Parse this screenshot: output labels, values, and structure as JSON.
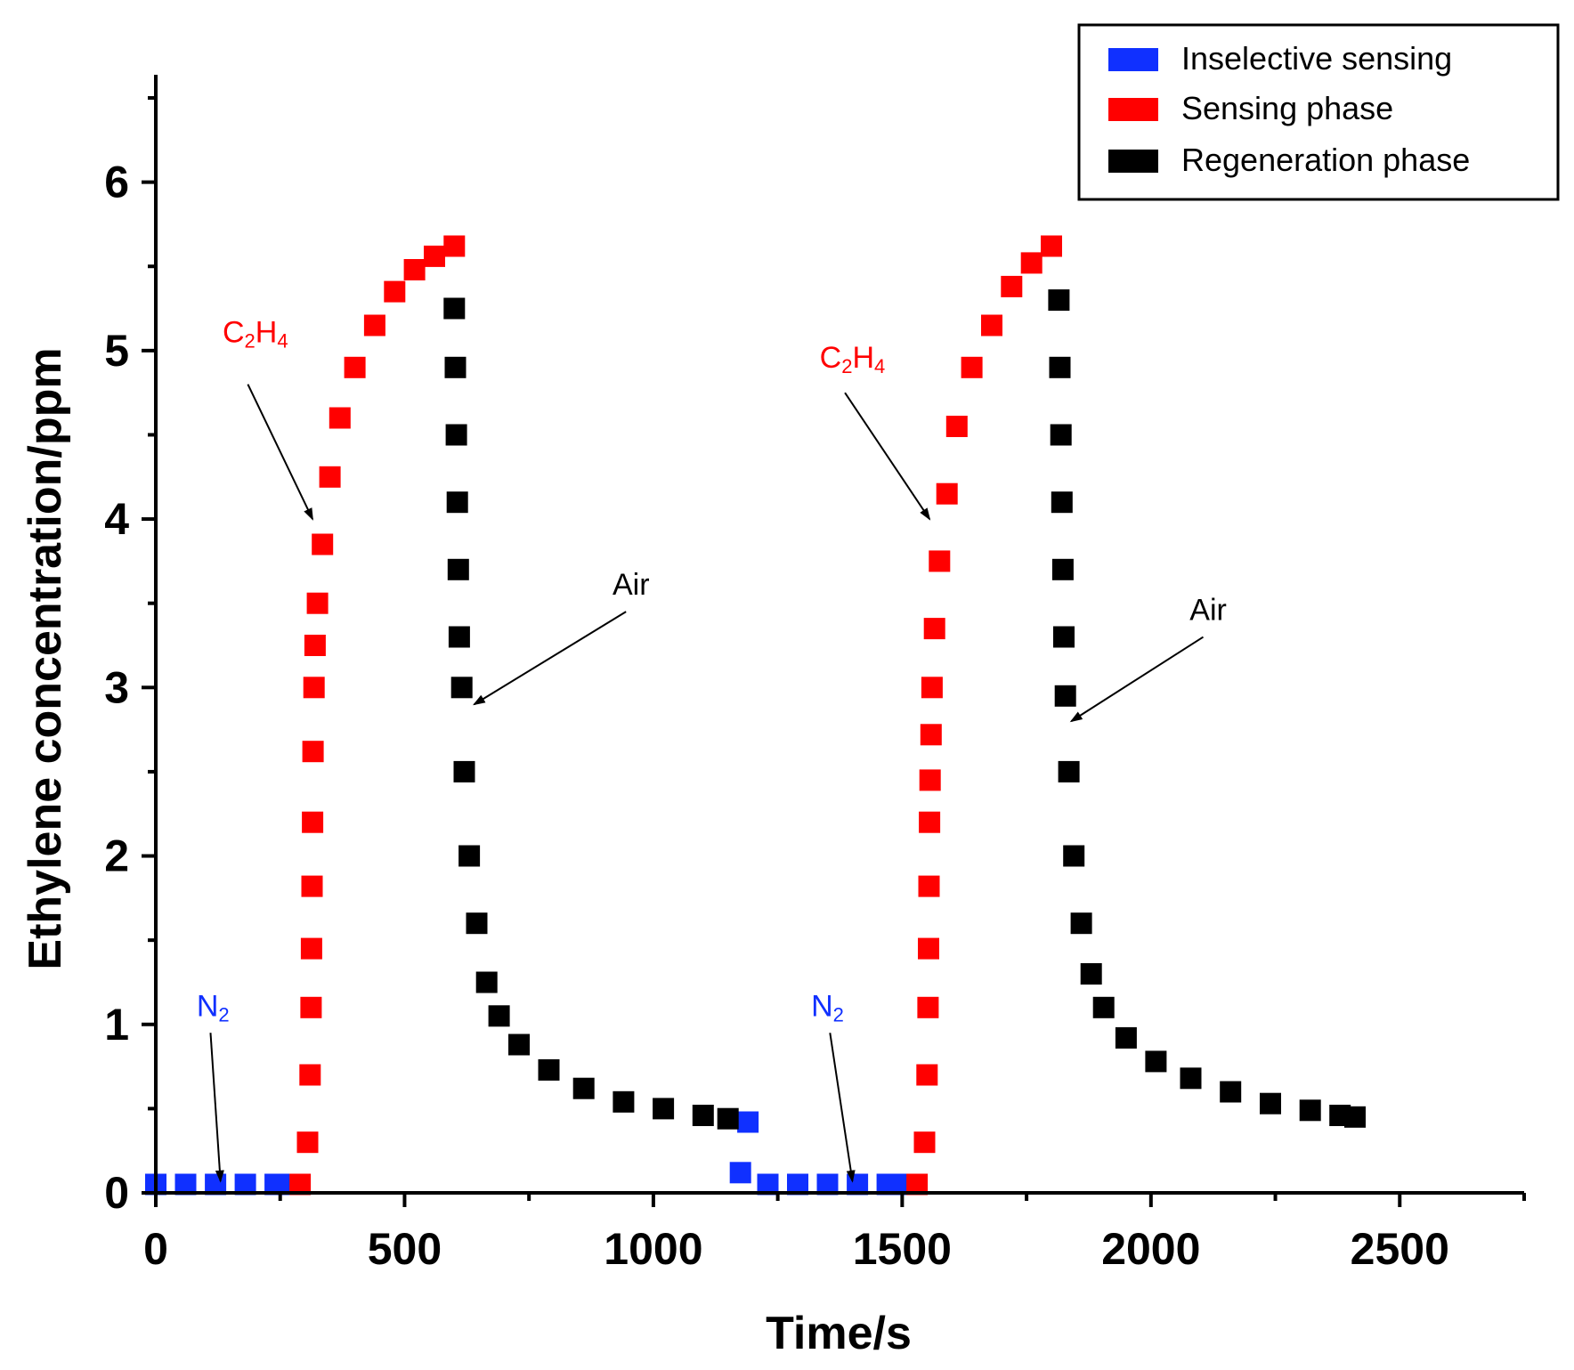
{
  "chart_data": {
    "type": "scatter",
    "title": "",
    "xlabel": "Time/s",
    "ylabel": "Ethylene concentration/ppm",
    "xlim": [
      0,
      2750
    ],
    "ylim": [
      0,
      6.5
    ],
    "xticks": [
      0,
      500,
      1000,
      1500,
      2000,
      2500
    ],
    "yticks": [
      0,
      1,
      2,
      3,
      4,
      5,
      6
    ],
    "legend_position": "top-right",
    "series": [
      {
        "name": "Inselective sensing",
        "color": "#1030ff",
        "points": [
          [
            0,
            0.05
          ],
          [
            60,
            0.05
          ],
          [
            120,
            0.05
          ],
          [
            180,
            0.05
          ],
          [
            240,
            0.05
          ],
          [
            270,
            0.05
          ],
          [
            1175,
            0.12
          ],
          [
            1190,
            0.42
          ],
          [
            1230,
            0.05
          ],
          [
            1290,
            0.05
          ],
          [
            1350,
            0.05
          ],
          [
            1410,
            0.05
          ],
          [
            1470,
            0.05
          ],
          [
            1510,
            0.05
          ]
        ]
      },
      {
        "name": "Sensing phase",
        "color": "#ff0000",
        "points": [
          [
            290,
            0.05
          ],
          [
            305,
            0.3
          ],
          [
            310,
            0.7
          ],
          [
            312,
            1.1
          ],
          [
            313,
            1.45
          ],
          [
            314,
            1.82
          ],
          [
            315,
            2.2
          ],
          [
            316,
            2.62
          ],
          [
            318,
            3.0
          ],
          [
            320,
            3.25
          ],
          [
            325,
            3.5
          ],
          [
            335,
            3.85
          ],
          [
            350,
            4.25
          ],
          [
            370,
            4.6
          ],
          [
            400,
            4.9
          ],
          [
            440,
            5.15
          ],
          [
            480,
            5.35
          ],
          [
            520,
            5.48
          ],
          [
            560,
            5.56
          ],
          [
            600,
            5.62
          ],
          [
            1530,
            0.05
          ],
          [
            1545,
            0.3
          ],
          [
            1550,
            0.7
          ],
          [
            1552,
            1.1
          ],
          [
            1553,
            1.45
          ],
          [
            1554,
            1.82
          ],
          [
            1555,
            2.2
          ],
          [
            1556,
            2.45
          ],
          [
            1558,
            2.72
          ],
          [
            1560,
            3.0
          ],
          [
            1565,
            3.35
          ],
          [
            1575,
            3.75
          ],
          [
            1590,
            4.15
          ],
          [
            1610,
            4.55
          ],
          [
            1640,
            4.9
          ],
          [
            1680,
            5.15
          ],
          [
            1720,
            5.38
          ],
          [
            1760,
            5.52
          ],
          [
            1800,
            5.62
          ]
        ]
      },
      {
        "name": "Regeneration phase",
        "color": "#000000",
        "points": [
          [
            600,
            5.25
          ],
          [
            602,
            4.9
          ],
          [
            604,
            4.5
          ],
          [
            606,
            4.1
          ],
          [
            608,
            3.7
          ],
          [
            610,
            3.3
          ],
          [
            615,
            3.0
          ],
          [
            620,
            2.5
          ],
          [
            630,
            2.0
          ],
          [
            645,
            1.6
          ],
          [
            665,
            1.25
          ],
          [
            690,
            1.05
          ],
          [
            730,
            0.88
          ],
          [
            790,
            0.73
          ],
          [
            860,
            0.62
          ],
          [
            940,
            0.54
          ],
          [
            1020,
            0.5
          ],
          [
            1100,
            0.46
          ],
          [
            1150,
            0.44
          ],
          [
            1815,
            5.3
          ],
          [
            1817,
            4.9
          ],
          [
            1819,
            4.5
          ],
          [
            1821,
            4.1
          ],
          [
            1823,
            3.7
          ],
          [
            1825,
            3.3
          ],
          [
            1828,
            2.95
          ],
          [
            1835,
            2.5
          ],
          [
            1845,
            2.0
          ],
          [
            1860,
            1.6
          ],
          [
            1880,
            1.3
          ],
          [
            1905,
            1.1
          ],
          [
            1950,
            0.92
          ],
          [
            2010,
            0.78
          ],
          [
            2080,
            0.68
          ],
          [
            2160,
            0.6
          ],
          [
            2240,
            0.53
          ],
          [
            2320,
            0.49
          ],
          [
            2380,
            0.46
          ],
          [
            2410,
            0.45
          ]
        ]
      }
    ],
    "annotations": [
      {
        "main": "C",
        "sub1": "2",
        "mid": "H",
        "sub2": "4",
        "color": "#ff0000",
        "text_at": [
          200,
          5.05
        ],
        "arrow_from": [
          185,
          4.8
        ],
        "arrow_to": [
          315,
          4.0
        ]
      },
      {
        "main": "C",
        "sub1": "2",
        "mid": "H",
        "sub2": "4",
        "color": "#ff0000",
        "text_at": [
          1400,
          4.9
        ],
        "arrow_from": [
          1385,
          4.75
        ],
        "arrow_to": [
          1555,
          4.0
        ]
      },
      {
        "main": "Air",
        "color": "#000000",
        "text_at": [
          955,
          3.55
        ],
        "arrow_from": [
          945,
          3.45
        ],
        "arrow_to": [
          640,
          2.9
        ]
      },
      {
        "main": "Air",
        "color": "#000000",
        "text_at": [
          2115,
          3.4
        ],
        "arrow_from": [
          2105,
          3.3
        ],
        "arrow_to": [
          1840,
          2.8
        ]
      },
      {
        "main": "N",
        "sub1": "2",
        "color": "#1030ff",
        "text_at": [
          115,
          1.05
        ],
        "arrow_from": [
          110,
          0.95
        ],
        "arrow_to": [
          130,
          0.07
        ]
      },
      {
        "main": "N",
        "sub1": "2",
        "color": "#1030ff",
        "text_at": [
          1350,
          1.05
        ],
        "arrow_from": [
          1355,
          0.95
        ],
        "arrow_to": [
          1400,
          0.07
        ]
      }
    ]
  }
}
